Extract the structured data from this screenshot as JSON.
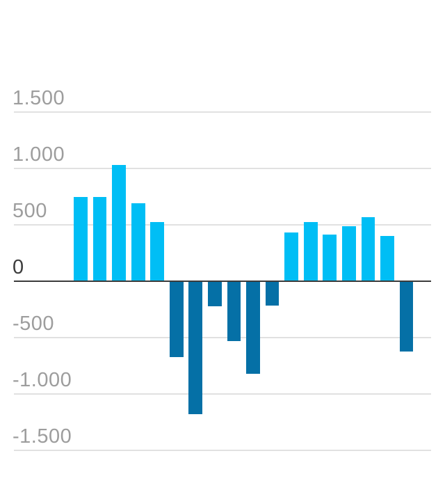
{
  "chart_data": {
    "type": "bar",
    "values": [
      750,
      750,
      1030,
      690,
      525,
      -675,
      -1180,
      -220,
      -530,
      -820,
      -215,
      430,
      525,
      415,
      490,
      570,
      400,
      -625
    ],
    "y_ticks": [
      {
        "value": 1500,
        "label": "1.500"
      },
      {
        "value": 1000,
        "label": "1.000"
      },
      {
        "value": 500,
        "label": "500"
      },
      {
        "value": 0,
        "label": "0"
      },
      {
        "value": -500,
        "label": "-500"
      },
      {
        "value": -1000,
        "label": "-1.000"
      },
      {
        "value": -1500,
        "label": "-1.500"
      }
    ],
    "ylim": [
      -1500,
      1500
    ],
    "grid": true,
    "legend": false,
    "x_axis_labels_visible": false,
    "number_format": "thousands-dot",
    "colors": {
      "positive_bar": "#00bef5",
      "negative_bar": "#0570a6",
      "gridline": "#e1e1e1",
      "zero_axis": "#3b3b3b",
      "tick_label": "#9d9d9d",
      "zero_tick_label": "#3d3d3d",
      "background": "#ffffff"
    }
  }
}
